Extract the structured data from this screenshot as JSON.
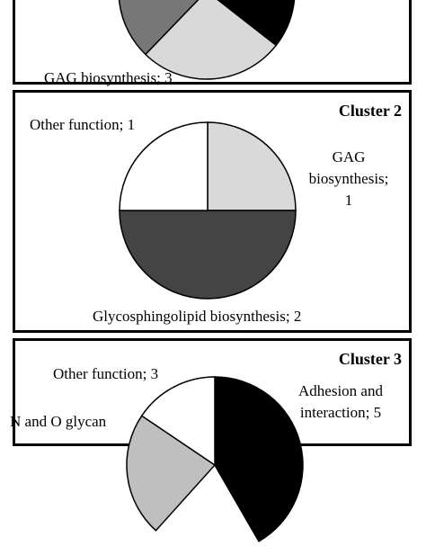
{
  "chart_data": [
    {
      "type": "pie",
      "title": "",
      "partial": true,
      "slices": [
        {
          "label": "",
          "color": "#777777"
        },
        {
          "label": "GAG biosynthesis; 3",
          "color": "#d9d9d9"
        },
        {
          "label": "",
          "color": "#000000"
        }
      ]
    },
    {
      "type": "pie",
      "title": "Cluster 2",
      "slices": [
        {
          "label": "GAG biosynthesis; 1",
          "value": 1,
          "color": "#d9d9d9"
        },
        {
          "label": "Glycosphingolipid biosynthesis; 2",
          "value": 2,
          "color": "#444444"
        },
        {
          "label": "Other function; 1",
          "value": 1,
          "color": "#ffffff"
        }
      ]
    },
    {
      "type": "pie",
      "title": "Cluster 3",
      "partial": true,
      "slices": [
        {
          "label": "Adhesion and interaction; 5",
          "value": 5,
          "color": "#000000"
        },
        {
          "label": "N and O glycan",
          "color": "#bfbfbf"
        },
        {
          "label": "Other function; 3",
          "value": 3,
          "color": "#ffffff"
        }
      ]
    }
  ],
  "labels": {
    "p1_gag": "GAG biosynthesis; 3",
    "p2_title": "Cluster 2",
    "p2_other": "Other function; 1",
    "p2_gag_line1": "GAG",
    "p2_gag_line2": "biosynthesis;",
    "p2_gag_line3": "1",
    "p2_glyco": "Glycosphingolipid biosynthesis; 2",
    "p3_title": "Cluster 3",
    "p3_other": "Other function; 3",
    "p3_adhesion_line1": "Adhesion and",
    "p3_adhesion_line2": "interaction; 5",
    "p3_nglycan": "N and O glycan"
  }
}
